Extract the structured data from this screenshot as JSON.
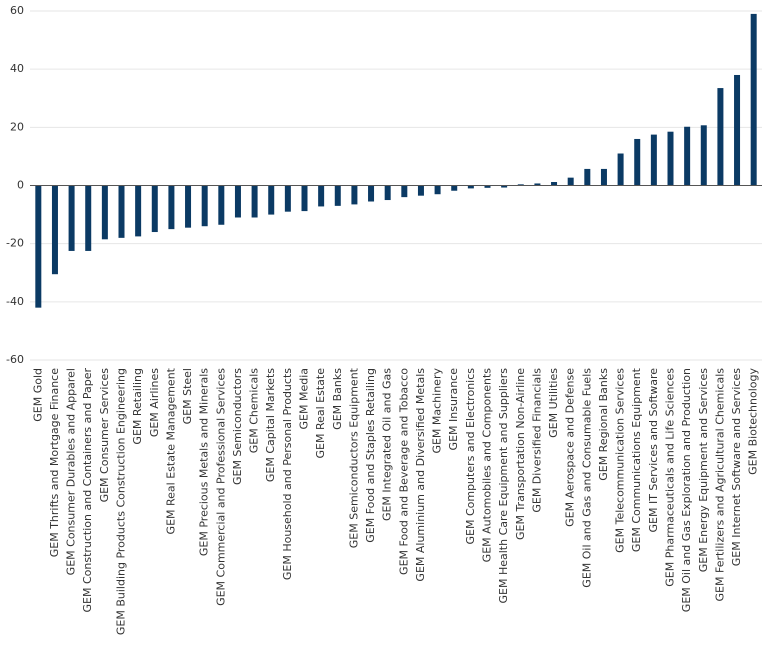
{
  "chart_data": {
    "type": "bar",
    "categories": [
      "GEM Gold",
      "GEM Thrifts and Mortgage Finance",
      "GEM Consumer Durables and Apparel",
      "GEM Construction and Containers and Paper",
      "GEM Consumer Services",
      "GEM Building Products Construction Engineering",
      "GEM Retailing",
      "GEM Airlines",
      "GEM Real Estate Management",
      "GEM Steel",
      "GEM Precious Metals and Minerals",
      "GEM Commercial and Professional Services",
      "GEM Semiconductors",
      "GEM Chemicals",
      "GEM Capital Markets",
      "GEM Household and Personal Products",
      "GEM Media",
      "GEM Real Estate",
      "GEM Banks",
      "GEM Semiconductors Equipment",
      "GEM Food and Staples Retailing",
      "GEM Integrated Oil and Gas",
      "GEM Food and Beverage and Tobacco",
      "GEM Aluminium and Diversified Metals",
      "GEM Machinery",
      "GEM Insurance",
      "GEM Computers and Electronics",
      "GEM Automobiles and Components",
      "GEM Health Care Equipment and Suppliers",
      "GEM Transportation Non-Airline",
      "GEM Diversified Financials",
      "GEM Utilities",
      "GEM Aerospace and Defense",
      "GEM Oil and Gas and Consumable Fuels",
      "GEM Regional Banks",
      "GEM Telecommunication Services",
      "GEM Communications Equipment",
      "GEM IT Services and Software",
      "GEM Pharmaceuticals and Life Sciences",
      "GEM Oil and Gas Exploration and Production",
      "GEM Energy Equipment and Services",
      "GEM Fertilizers and Agricultural Chemicals",
      "GEM Internet Software and Services",
      "GEM Biotechnology"
    ],
    "values": [
      -42,
      -30.5,
      -22.5,
      -22.5,
      -18.5,
      -18,
      -17.5,
      -16,
      -15,
      -14.5,
      -14,
      -13.5,
      -11,
      -11,
      -10,
      -9,
      -8.8,
      -7.2,
      -7,
      -6.5,
      -5.5,
      -5,
      -4,
      -3.5,
      -3,
      -1.8,
      -1,
      -0.8,
      -0.7,
      0.4,
      0.7,
      1.2,
      2.7,
      5.7,
      5.7,
      11,
      16,
      17.5,
      18.5,
      20.2,
      20.7,
      33.5,
      38,
      59
    ],
    "color": "#0b3a64",
    "ylim": [
      -60,
      60
    ],
    "yticks": [
      -60,
      -40,
      -20,
      0,
      20,
      40,
      60
    ],
    "grid": true
  }
}
